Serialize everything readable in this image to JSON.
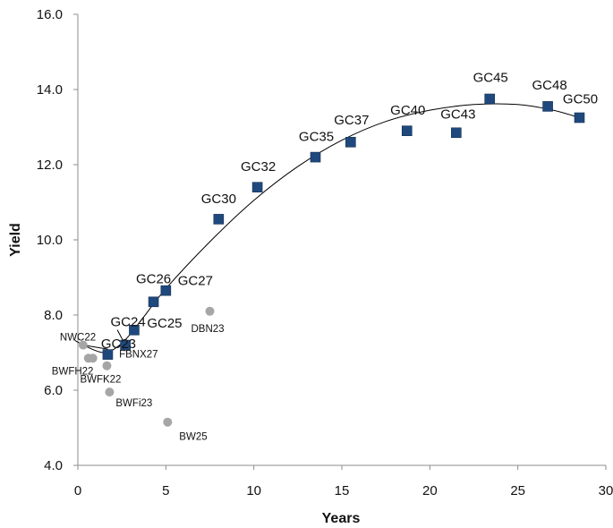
{
  "chart_data": {
    "type": "scatter",
    "title": "",
    "xlabel": "Years",
    "ylabel": "Yield",
    "xlim": [
      0,
      30
    ],
    "ylim": [
      4.0,
      16.0
    ],
    "x_ticks": [
      "0",
      "5",
      "10",
      "15",
      "20",
      "25",
      "30"
    ],
    "y_ticks": [
      "4.0",
      "6.0",
      "8.0",
      "10.0",
      "12.0",
      "14.0",
      "16.0"
    ],
    "grid": false,
    "legend": "none",
    "series": [
      {
        "marker": "square",
        "color": "#1F497D",
        "points": [
          {
            "label": "GC23",
            "x": 1.7,
            "y": 6.95
          },
          {
            "label": "GC24",
            "x": 2.7,
            "y": 7.2
          },
          {
            "label": "GC25",
            "x": 3.2,
            "y": 7.6
          },
          {
            "label": "GC26",
            "x": 4.3,
            "y": 8.35
          },
          {
            "label": "GC27",
            "x": 5.0,
            "y": 8.65
          },
          {
            "label": "GC30",
            "x": 8.0,
            "y": 10.55
          },
          {
            "label": "GC32",
            "x": 10.2,
            "y": 11.4
          },
          {
            "label": "GC35",
            "x": 13.5,
            "y": 12.2
          },
          {
            "label": "GC37",
            "x": 15.5,
            "y": 12.6
          },
          {
            "label": "GC40",
            "x": 18.7,
            "y": 12.9
          },
          {
            "label": "GC43",
            "x": 21.5,
            "y": 12.85
          },
          {
            "label": "GC45",
            "x": 23.4,
            "y": 13.75
          },
          {
            "label": "GC48",
            "x": 26.7,
            "y": 13.55
          },
          {
            "label": "GC50",
            "x": 28.5,
            "y": 13.25
          }
        ]
      },
      {
        "marker": "circle",
        "color": "#A6A6A6",
        "points": [
          {
            "label": "NWC22",
            "x": 0.3,
            "y": 7.2
          },
          {
            "label": "BWFH22",
            "x": 0.6,
            "y": 6.85
          },
          {
            "label": "",
            "x": 0.85,
            "y": 6.85
          },
          {
            "label": "BWFK22",
            "x": 1.65,
            "y": 6.65
          },
          {
            "label": "BWFi23",
            "x": 1.8,
            "y": 5.95
          },
          {
            "label": "FBNX27",
            "x": 2.7,
            "y": 7.15
          },
          {
            "label": "BW25",
            "x": 5.1,
            "y": 5.15
          },
          {
            "label": "DBN23",
            "x": 7.5,
            "y": 8.1
          }
        ]
      }
    ],
    "trendline": {
      "type": "polynomial",
      "color": "#000000",
      "points": [
        {
          "x": 0.3,
          "y": 7.2
        },
        {
          "x": 1.5,
          "y": 7.0
        },
        {
          "x": 2.5,
          "y": 7.25
        },
        {
          "x": 3.5,
          "y": 7.8
        },
        {
          "x": 5.0,
          "y": 8.7
        },
        {
          "x": 7.5,
          "y": 9.95
        },
        {
          "x": 10.0,
          "y": 11.05
        },
        {
          "x": 12.5,
          "y": 11.95
        },
        {
          "x": 15.0,
          "y": 12.65
        },
        {
          "x": 17.5,
          "y": 13.15
        },
        {
          "x": 20.0,
          "y": 13.45
        },
        {
          "x": 22.5,
          "y": 13.6
        },
        {
          "x": 25.0,
          "y": 13.6
        },
        {
          "x": 27.0,
          "y": 13.45
        },
        {
          "x": 28.5,
          "y": 13.25
        }
      ]
    }
  }
}
